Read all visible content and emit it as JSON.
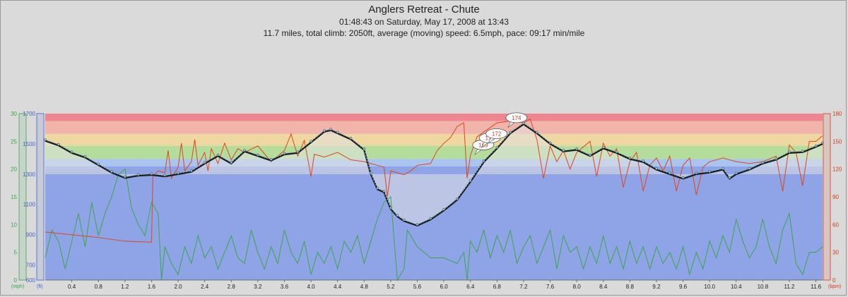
{
  "header": {
    "title": "Anglers Retreat - Chute",
    "line1": "01:48:43 on Saturday, May 17, 2008 at 13:43",
    "line2": "11.7 miles, total climb: 2050ft, average (moving) speed: 6.5mph, pace: 09:17 min/mile"
  },
  "chart_data": {
    "type": "line",
    "title": "Anglers Retreat - Chute",
    "x": {
      "label": "",
      "range": [
        0,
        11.7
      ],
      "ticks": [
        "0.4",
        "0.8",
        "1.2",
        "1.6",
        "2.0",
        "2.4",
        "2.8",
        "3.2",
        "3.6",
        "4.0",
        "4.4",
        "4.8",
        "5.2",
        "5.6",
        "6.0",
        "6.4",
        "6.8",
        "7.2",
        "7.6",
        "8.0",
        "8.4",
        "8.8",
        "9.2",
        "9.6",
        "10.0",
        "10.4",
        "10.8",
        "11.2",
        "11.6"
      ]
    },
    "axes": {
      "speed": {
        "unit": "(mph)",
        "range": [
          0,
          30
        ],
        "ticks": [
          "0",
          "5",
          "10",
          "15",
          "20",
          "25",
          "30"
        ],
        "color": "#3aa64a"
      },
      "elevation": {
        "unit": "(ft)",
        "range": [
          600,
          1700
        ],
        "ticks": [
          "600",
          "700",
          "900",
          "1100",
          "1300",
          "1500",
          "1700"
        ],
        "color": "#3f63c9"
      },
      "heart_rate": {
        "unit": "(bpm)",
        "range": [
          0,
          180
        ],
        "ticks": [
          "0",
          "30",
          "60",
          "90",
          "120",
          "150",
          "180"
        ],
        "color": "#d23b1a"
      }
    },
    "heart_rate_zones": [
      {
        "from": 0,
        "to": 123,
        "color": "#8fa4e6"
      },
      {
        "from": 123,
        "to": 131,
        "color": "#a8c4ef"
      },
      {
        "from": 131,
        "to": 145,
        "color": "#b4dd9c"
      },
      {
        "from": 145,
        "to": 158,
        "color": "#eed7a0"
      },
      {
        "from": 158,
        "to": 172,
        "color": "#f0b4ab"
      },
      {
        "from": 172,
        "to": 180,
        "color": "#ee8690"
      }
    ],
    "series": [
      {
        "name": "Elevation",
        "axis": "elevation",
        "points": [
          [
            0,
            1520
          ],
          [
            0.2,
            1490
          ],
          [
            0.4,
            1440
          ],
          [
            0.6,
            1410
          ],
          [
            0.8,
            1360
          ],
          [
            1.0,
            1310
          ],
          [
            1.2,
            1275
          ],
          [
            1.4,
            1290
          ],
          [
            1.6,
            1295
          ],
          [
            1.8,
            1285
          ],
          [
            2.0,
            1300
          ],
          [
            2.2,
            1315
          ],
          [
            2.4,
            1370
          ],
          [
            2.6,
            1420
          ],
          [
            2.8,
            1370
          ],
          [
            3.0,
            1450
          ],
          [
            3.2,
            1420
          ],
          [
            3.4,
            1390
          ],
          [
            3.6,
            1430
          ],
          [
            3.8,
            1440
          ],
          [
            4.0,
            1510
          ],
          [
            4.2,
            1580
          ],
          [
            4.3,
            1590
          ],
          [
            4.4,
            1570
          ],
          [
            4.6,
            1530
          ],
          [
            4.8,
            1460
          ],
          [
            4.9,
            1300
          ],
          [
            5.0,
            1200
          ],
          [
            5.1,
            1180
          ],
          [
            5.2,
            1070
          ],
          [
            5.3,
            1020
          ],
          [
            5.4,
            990
          ],
          [
            5.6,
            960
          ],
          [
            5.8,
            1000
          ],
          [
            6.0,
            1060
          ],
          [
            6.2,
            1130
          ],
          [
            6.4,
            1250
          ],
          [
            6.6,
            1380
          ],
          [
            6.8,
            1470
          ],
          [
            7.0,
            1570
          ],
          [
            7.2,
            1630
          ],
          [
            7.4,
            1570
          ],
          [
            7.6,
            1500
          ],
          [
            7.8,
            1450
          ],
          [
            8.0,
            1460
          ],
          [
            8.2,
            1420
          ],
          [
            8.4,
            1470
          ],
          [
            8.6,
            1440
          ],
          [
            8.8,
            1400
          ],
          [
            9.0,
            1380
          ],
          [
            9.2,
            1330
          ],
          [
            9.4,
            1300
          ],
          [
            9.6,
            1270
          ],
          [
            9.8,
            1300
          ],
          [
            10.0,
            1310
          ],
          [
            10.2,
            1330
          ],
          [
            10.3,
            1270
          ],
          [
            10.4,
            1300
          ],
          [
            10.6,
            1330
          ],
          [
            10.8,
            1370
          ],
          [
            11.0,
            1395
          ],
          [
            11.2,
            1440
          ],
          [
            11.4,
            1445
          ],
          [
            11.6,
            1480
          ],
          [
            11.7,
            1500
          ]
        ]
      },
      {
        "name": "Speed",
        "axis": "speed",
        "points": [
          [
            0,
            4
          ],
          [
            0.1,
            9
          ],
          [
            0.2,
            7
          ],
          [
            0.3,
            2
          ],
          [
            0.4,
            7
          ],
          [
            0.5,
            12
          ],
          [
            0.6,
            6
          ],
          [
            0.7,
            14
          ],
          [
            0.8,
            8
          ],
          [
            0.9,
            12
          ],
          [
            1.0,
            15
          ],
          [
            1.1,
            19
          ],
          [
            1.2,
            20
          ],
          [
            1.3,
            13
          ],
          [
            1.4,
            10
          ],
          [
            1.5,
            8
          ],
          [
            1.6,
            14
          ],
          [
            1.7,
            12
          ],
          [
            1.75,
            0
          ],
          [
            1.8,
            6
          ],
          [
            1.9,
            3
          ],
          [
            2.0,
            1
          ],
          [
            2.1,
            6
          ],
          [
            2.2,
            3
          ],
          [
            2.3,
            8
          ],
          [
            2.4,
            4
          ],
          [
            2.5,
            6
          ],
          [
            2.6,
            2
          ],
          [
            2.7,
            5
          ],
          [
            2.8,
            8
          ],
          [
            2.9,
            4
          ],
          [
            3.0,
            3
          ],
          [
            3.1,
            9
          ],
          [
            3.2,
            5
          ],
          [
            3.3,
            2
          ],
          [
            3.4,
            6
          ],
          [
            3.5,
            3
          ],
          [
            3.6,
            9
          ],
          [
            3.7,
            5
          ],
          [
            3.8,
            3
          ],
          [
            3.9,
            7
          ],
          [
            4.0,
            1
          ],
          [
            4.1,
            5
          ],
          [
            4.2,
            3
          ],
          [
            4.3,
            6
          ],
          [
            4.4,
            2
          ],
          [
            4.5,
            7
          ],
          [
            4.6,
            5
          ],
          [
            4.7,
            8
          ],
          [
            4.8,
            3
          ],
          [
            4.9,
            7
          ],
          [
            5.0,
            11
          ],
          [
            5.1,
            14
          ],
          [
            5.2,
            15
          ],
          [
            5.3,
            0
          ],
          [
            5.4,
            2
          ],
          [
            5.45,
            9
          ],
          [
            5.6,
            6
          ],
          [
            5.8,
            4
          ],
          [
            6.0,
            4
          ],
          [
            6.2,
            3
          ],
          [
            6.3,
            5
          ],
          [
            6.35,
            0
          ],
          [
            6.4,
            7
          ],
          [
            6.5,
            5
          ],
          [
            6.6,
            9
          ],
          [
            6.7,
            4
          ],
          [
            6.8,
            8
          ],
          [
            6.9,
            5
          ],
          [
            7.0,
            9
          ],
          [
            7.1,
            3
          ],
          [
            7.2,
            6
          ],
          [
            7.3,
            8
          ],
          [
            7.4,
            3
          ],
          [
            7.5,
            6
          ],
          [
            7.6,
            9
          ],
          [
            7.7,
            2
          ],
          [
            7.8,
            8
          ],
          [
            7.9,
            5
          ],
          [
            8.0,
            6
          ],
          [
            8.1,
            2
          ],
          [
            8.2,
            6
          ],
          [
            8.3,
            3
          ],
          [
            8.4,
            8
          ],
          [
            8.5,
            3
          ],
          [
            8.6,
            6
          ],
          [
            8.7,
            2
          ],
          [
            8.8,
            7
          ],
          [
            8.9,
            3
          ],
          [
            9.0,
            6
          ],
          [
            9.1,
            2
          ],
          [
            9.2,
            6
          ],
          [
            9.3,
            3
          ],
          [
            9.4,
            5
          ],
          [
            9.5,
            2
          ],
          [
            9.6,
            6
          ],
          [
            9.7,
            1
          ],
          [
            9.8,
            5
          ],
          [
            9.9,
            2
          ],
          [
            10.0,
            7
          ],
          [
            10.1,
            4
          ],
          [
            10.2,
            8
          ],
          [
            10.3,
            5
          ],
          [
            10.4,
            11
          ],
          [
            10.5,
            7
          ],
          [
            10.6,
            4
          ],
          [
            10.7,
            6
          ],
          [
            10.8,
            11
          ],
          [
            10.9,
            6
          ],
          [
            11.0,
            3
          ],
          [
            11.1,
            9
          ],
          [
            11.2,
            12
          ],
          [
            11.3,
            3
          ],
          [
            11.4,
            1
          ],
          [
            11.5,
            5
          ],
          [
            11.6,
            5
          ],
          [
            11.7,
            6
          ]
        ]
      },
      {
        "name": "Heart Rate",
        "axis": "heart_rate",
        "points": [
          [
            0,
            52
          ],
          [
            0.4,
            49
          ],
          [
            0.8,
            46
          ],
          [
            1.2,
            42
          ],
          [
            1.6,
            41
          ],
          [
            1.62,
            112
          ],
          [
            1.7,
            118
          ],
          [
            1.8,
            116
          ],
          [
            1.85,
            140
          ],
          [
            1.9,
            110
          ],
          [
            2.0,
            122
          ],
          [
            2.05,
            148
          ],
          [
            2.1,
            118
          ],
          [
            2.2,
            128
          ],
          [
            2.25,
            152
          ],
          [
            2.3,
            124
          ],
          [
            2.4,
            138
          ],
          [
            2.45,
            118
          ],
          [
            2.5,
            142
          ],
          [
            2.6,
            126
          ],
          [
            2.7,
            148
          ],
          [
            2.8,
            130
          ],
          [
            2.9,
            142
          ],
          [
            3.0,
            138
          ],
          [
            3.2,
            145
          ],
          [
            3.4,
            128
          ],
          [
            3.6,
            140
          ],
          [
            3.7,
            158
          ],
          [
            3.8,
            134
          ],
          [
            3.9,
            151
          ],
          [
            4.0,
            112
          ],
          [
            4.05,
            136
          ],
          [
            4.2,
            133
          ],
          [
            4.4,
            138
          ],
          [
            4.6,
            130
          ],
          [
            4.8,
            128
          ],
          [
            5.0,
            124
          ],
          [
            5.1,
            122
          ],
          [
            5.15,
            90
          ],
          [
            5.2,
            118
          ],
          [
            5.3,
            116
          ],
          [
            5.4,
            114
          ],
          [
            5.5,
            118
          ],
          [
            5.6,
            124
          ],
          [
            5.8,
            126
          ],
          [
            5.9,
            140
          ],
          [
            6.0,
            148
          ],
          [
            6.1,
            154
          ],
          [
            6.2,
            166
          ],
          [
            6.3,
            170
          ],
          [
            6.35,
            110
          ],
          [
            6.4,
            135
          ],
          [
            6.5,
            155
          ],
          [
            6.6,
            160
          ],
          [
            6.8,
            170
          ],
          [
            7.0,
            172
          ],
          [
            7.2,
            170
          ],
          [
            7.3,
            174
          ],
          [
            7.4,
            152
          ],
          [
            7.5,
            110
          ],
          [
            7.6,
            145
          ],
          [
            7.7,
            128
          ],
          [
            7.8,
            140
          ],
          [
            7.9,
            120
          ],
          [
            8.0,
            138
          ],
          [
            8.2,
            150
          ],
          [
            8.3,
            112
          ],
          [
            8.4,
            148
          ],
          [
            8.5,
            134
          ],
          [
            8.6,
            142
          ],
          [
            8.7,
            100
          ],
          [
            8.8,
            128
          ],
          [
            8.9,
            138
          ],
          [
            9.0,
            96
          ],
          [
            9.1,
            124
          ],
          [
            9.2,
            132
          ],
          [
            9.3,
            118
          ],
          [
            9.4,
            134
          ],
          [
            9.5,
            96
          ],
          [
            9.6,
            124
          ],
          [
            9.7,
            132
          ],
          [
            9.8,
            92
          ],
          [
            9.9,
            122
          ],
          [
            10.0,
            128
          ],
          [
            10.2,
            132
          ],
          [
            10.4,
            128
          ],
          [
            10.6,
            126
          ],
          [
            10.8,
            128
          ],
          [
            11.0,
            134
          ],
          [
            11.1,
            96
          ],
          [
            11.2,
            146
          ],
          [
            11.3,
            138
          ],
          [
            11.4,
            102
          ],
          [
            11.5,
            150
          ],
          [
            11.6,
            150
          ],
          [
            11.7,
            156
          ]
        ]
      }
    ],
    "annotations": [
      {
        "x": 6.55,
        "value": "169"
      },
      {
        "x": 6.65,
        "value": "172"
      },
      {
        "x": 6.75,
        "value": "172"
      },
      {
        "x": 7.05,
        "value": "174"
      }
    ],
    "grid": false,
    "legend": "none"
  }
}
